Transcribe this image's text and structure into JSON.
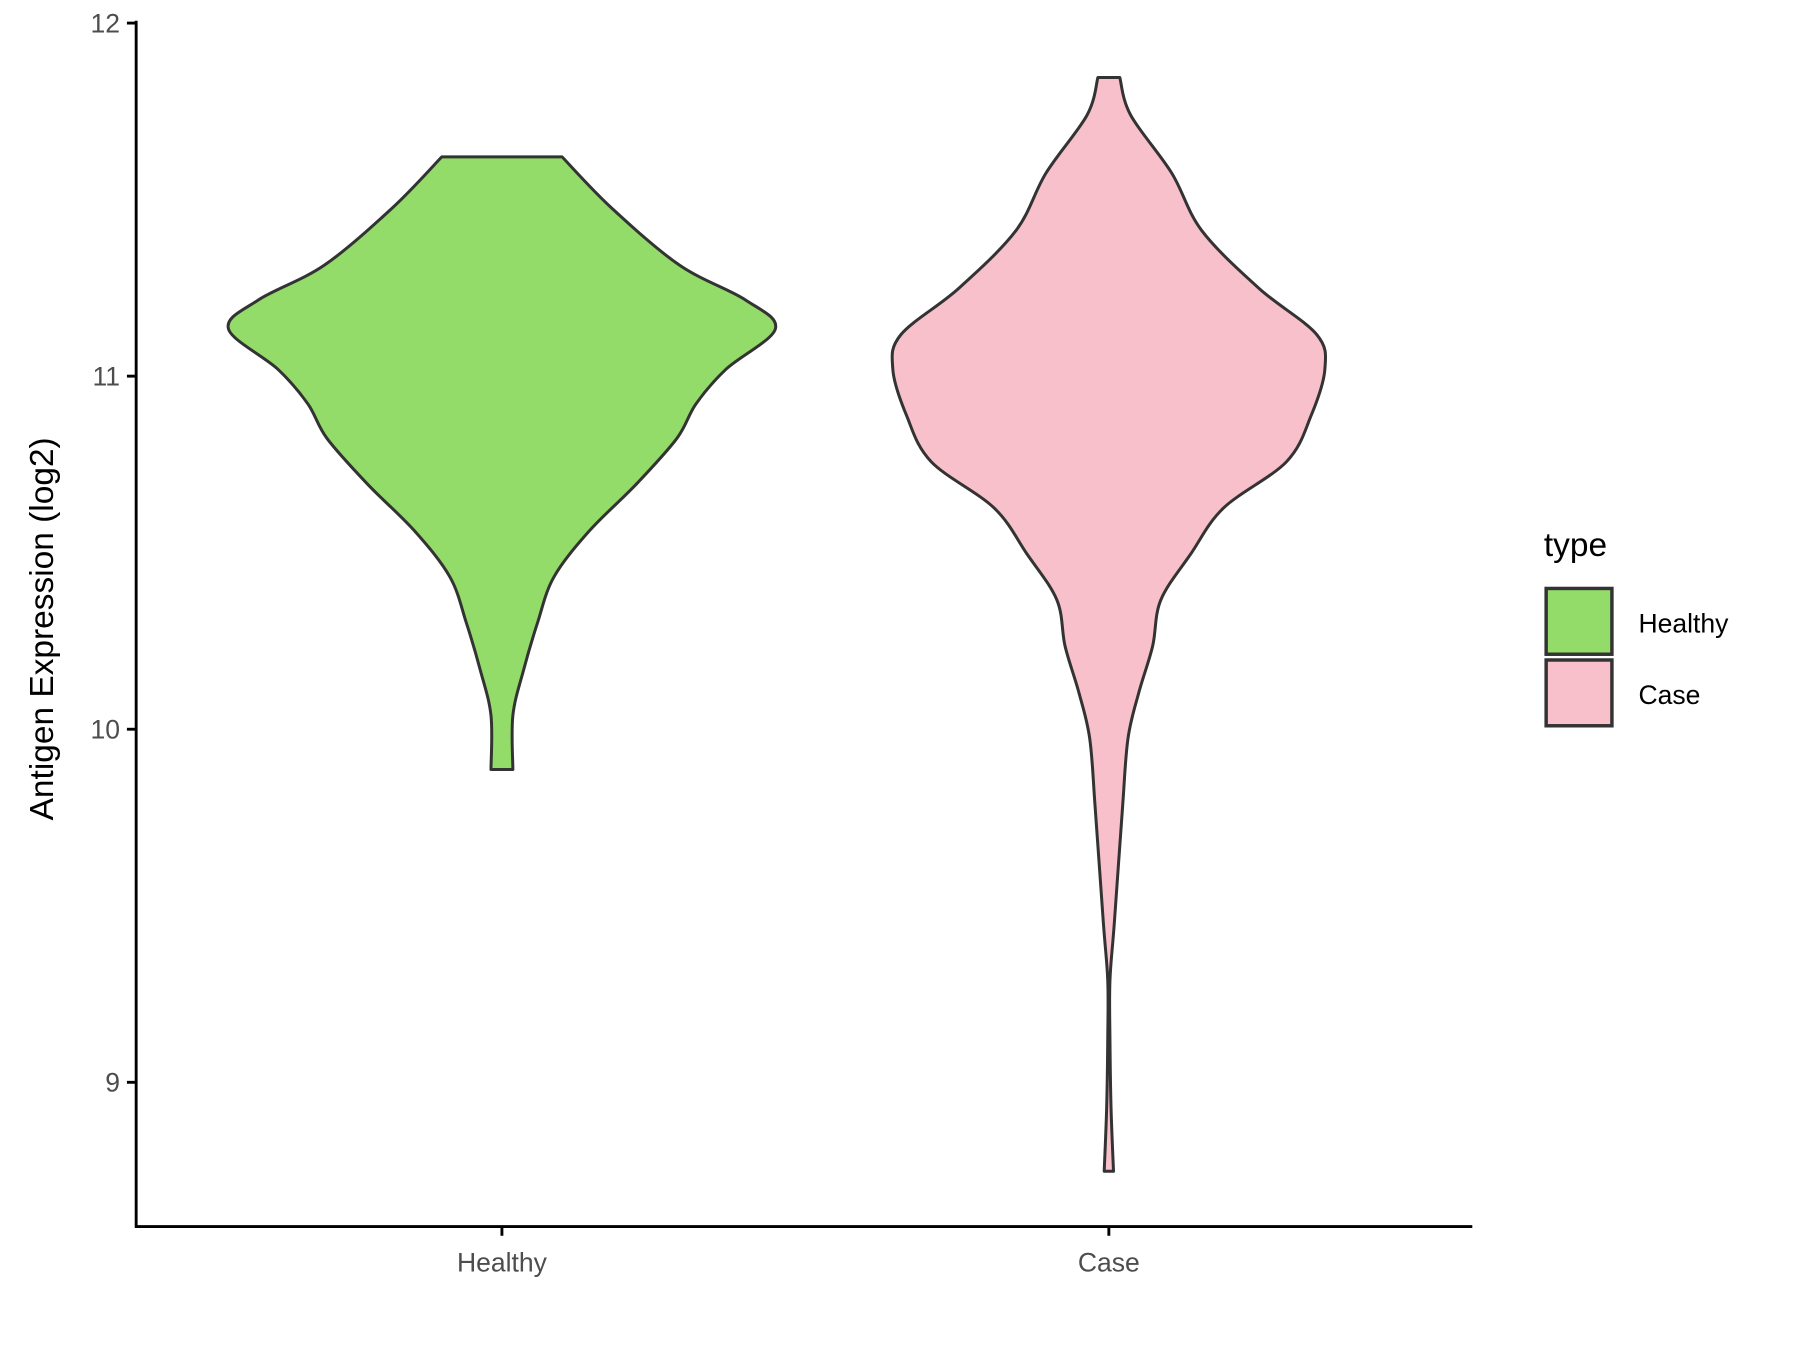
{
  "chart_data": {
    "type": "violin",
    "title": "",
    "xlabel": "",
    "ylabel": "Antigen Expression (log2)",
    "ylim": [
      8.6,
      12.0
    ],
    "yticks": [
      9,
      10,
      11,
      12
    ],
    "categories": [
      "Healthy",
      "Case"
    ],
    "legend": {
      "title": "type",
      "position": "right",
      "entries": [
        "Healthy",
        "Case"
      ]
    },
    "series": [
      {
        "name": "Healthy",
        "color": "#93DC6A",
        "outline": "#333333",
        "profile_values": [
          11.621,
          11.477,
          11.314,
          11.216,
          11.134,
          11.02,
          10.922,
          10.824,
          10.693,
          10.562,
          10.431,
          10.301,
          10.17,
          10.039,
          9.886
        ],
        "relative_density": [
          0.22,
          0.4,
          0.65,
          0.89,
          1.0,
          0.82,
          0.71,
          0.64,
          0.49,
          0.32,
          0.19,
          0.13,
          0.08,
          0.04,
          0.04
        ]
      },
      {
        "name": "Case",
        "color": "#F7C0CB",
        "outline": "#333333",
        "profile_values": [
          11.846,
          11.739,
          11.575,
          11.412,
          11.248,
          11.118,
          11.02,
          10.889,
          10.758,
          10.627,
          10.497,
          10.366,
          10.235,
          10.105,
          9.974,
          9.778,
          9.451,
          9.288,
          9.124,
          8.928,
          8.748
        ],
        "relative_density": [
          0.04,
          0.08,
          0.23,
          0.34,
          0.55,
          0.76,
          0.79,
          0.74,
          0.65,
          0.42,
          0.3,
          0.19,
          0.16,
          0.11,
          0.07,
          0.05,
          0.02,
          0.004,
          0.004,
          0.008,
          0.017
        ]
      }
    ]
  }
}
